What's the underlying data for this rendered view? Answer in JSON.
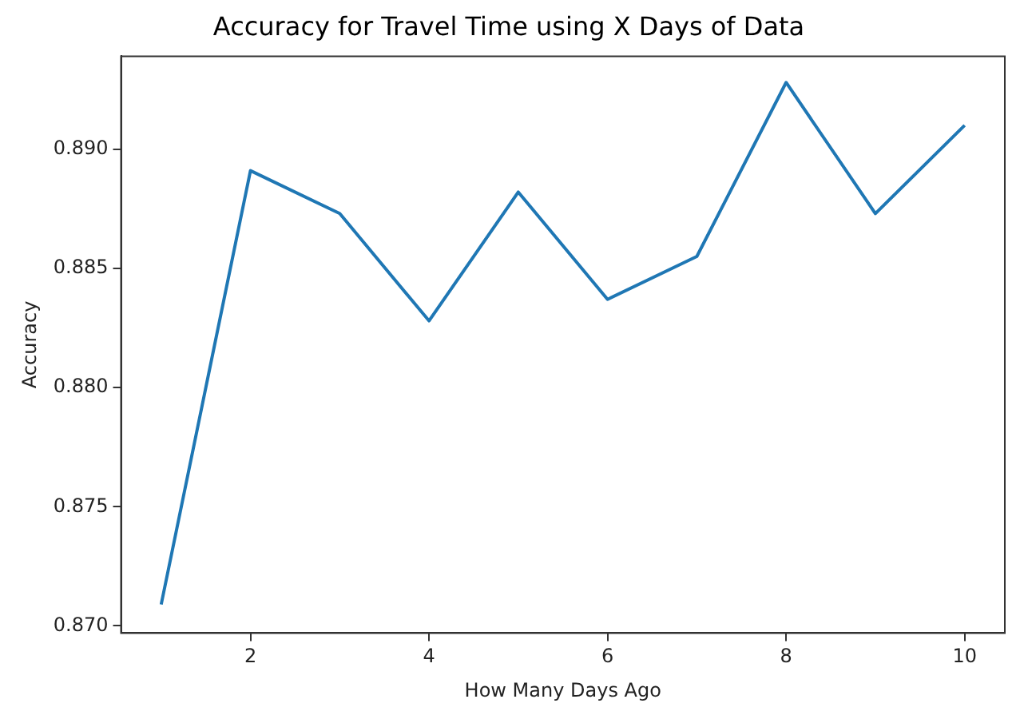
{
  "chart_data": {
    "type": "line",
    "title": "Accuracy for Travel Time using X Days of Data",
    "xlabel": "How Many Days Ago",
    "ylabel": "Accuracy",
    "x": [
      1,
      2,
      3,
      4,
      5,
      6,
      7,
      8,
      9,
      10
    ],
    "series": [
      {
        "color": "#1f77b4",
        "values": [
          0.8709,
          0.8891,
          0.8873,
          0.8828,
          0.8882,
          0.8837,
          0.8855,
          0.8928,
          0.8873,
          0.891
        ]
      }
    ],
    "xlim": [
      0.55,
      10.45
    ],
    "xticks": [
      2,
      4,
      6,
      8,
      10
    ],
    "ylim": [
      0.8697,
      0.8939
    ],
    "yticks": [
      {
        "value": 0.87,
        "label": "0.870"
      },
      {
        "value": 0.875,
        "label": "0.875"
      },
      {
        "value": 0.88,
        "label": "0.880"
      },
      {
        "value": 0.885,
        "label": "0.885"
      },
      {
        "value": 0.89,
        "label": "0.890"
      }
    ],
    "grid": false,
    "legend": false,
    "marker": "none",
    "line_style": "solid"
  }
}
